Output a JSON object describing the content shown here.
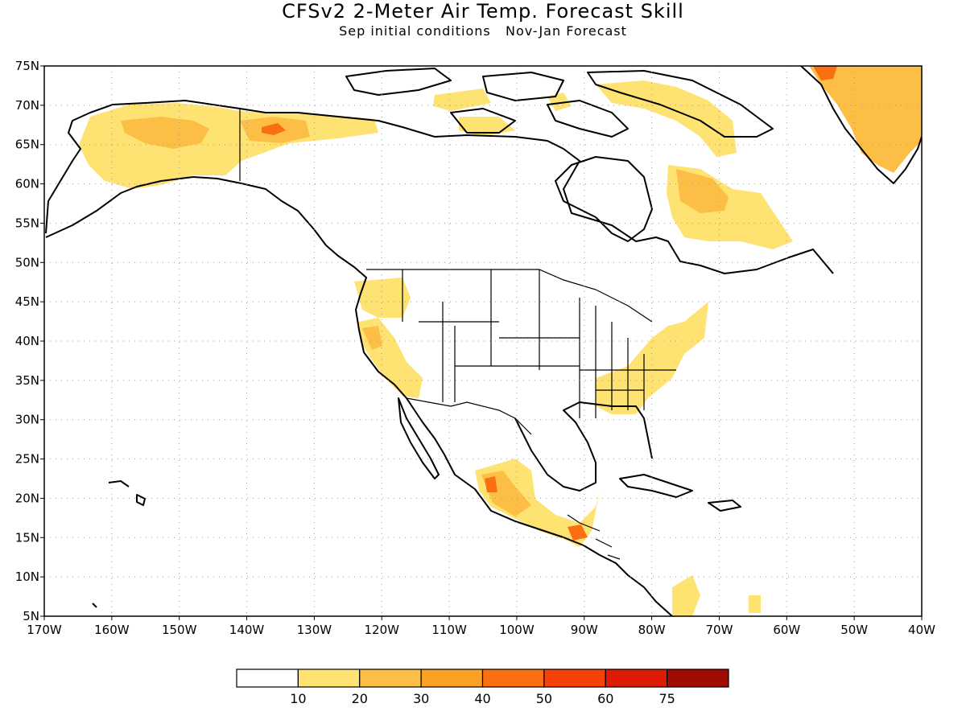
{
  "title": "CFSv2 2-Meter Air Temp. Forecast Skill",
  "subtitle": "Sep initial conditions   Nov-Jan Forecast",
  "map": {
    "lon_range": [
      -170,
      -40
    ],
    "lat_range": [
      5,
      75
    ],
    "lat_labels": [
      "75N",
      "70N",
      "65N",
      "60N",
      "55N",
      "50N",
      "45N",
      "40N",
      "35N",
      "30N",
      "25N",
      "20N",
      "15N",
      "10N",
      "5N"
    ],
    "lon_labels": [
      "170W",
      "160W",
      "150W",
      "140W",
      "130W",
      "120W",
      "110W",
      "100W",
      "90W",
      "80W",
      "70W",
      "60W",
      "50W",
      "40W"
    ],
    "grid": "dotted",
    "coastline_color": "#000000"
  },
  "colorbar": {
    "colors": [
      "#ffffff",
      "#fee272",
      "#fcbe45",
      "#fba224",
      "#fa7011",
      "#f54208",
      "#de1b04",
      "#a00c02"
    ],
    "labels": [
      "10",
      "20",
      "30",
      "40",
      "50",
      "60",
      "75"
    ]
  },
  "skill_regions": [
    {
      "name": "alaska",
      "color": "#fee272"
    },
    {
      "name": "yukon",
      "color": "#fcbe45"
    },
    {
      "name": "yukon-core",
      "color": "#fa7011"
    },
    {
      "name": "greenland",
      "color": "#fcbe45"
    },
    {
      "name": "labrador",
      "color": "#fee272"
    },
    {
      "name": "california",
      "color": "#fcbe45"
    },
    {
      "name": "southeast-us",
      "color": "#fee272"
    },
    {
      "name": "mexico",
      "color": "#fcbe45"
    },
    {
      "name": "central-america",
      "color": "#fa7011"
    }
  ]
}
